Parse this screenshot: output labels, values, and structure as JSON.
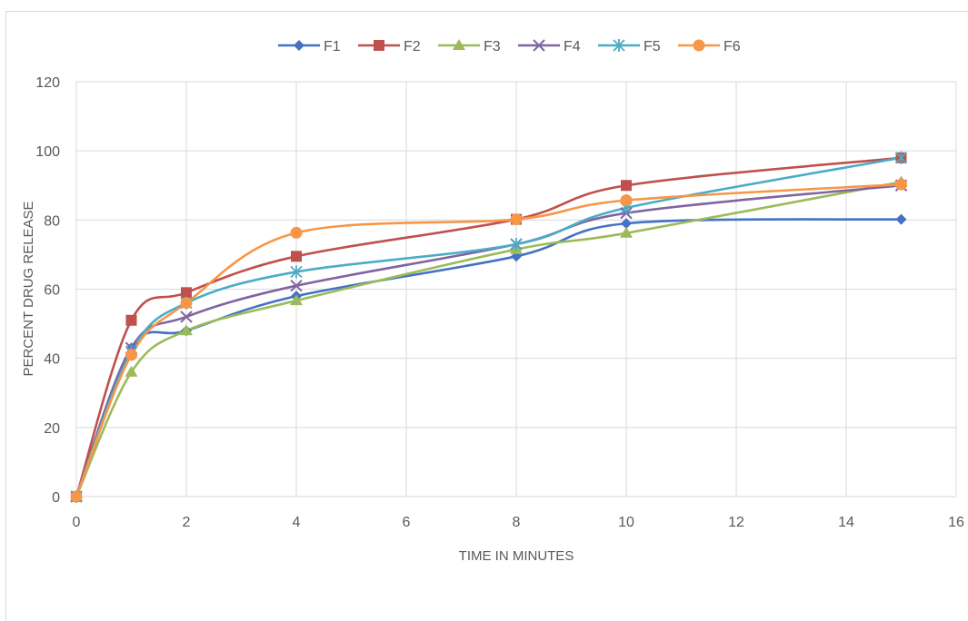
{
  "chart_data": {
    "type": "line",
    "title": "",
    "xlabel": "TIME IN MINUTES",
    "ylabel": "PERCENT DRUG RELEASE",
    "xlim": [
      0,
      16
    ],
    "ylim": [
      0,
      120
    ],
    "xticks": [
      0,
      2,
      4,
      6,
      8,
      10,
      12,
      14,
      16
    ],
    "yticks": [
      0,
      20,
      40,
      60,
      80,
      100,
      120
    ],
    "grid": true,
    "legend_position": "top",
    "smooth": true,
    "x": [
      0,
      1,
      2,
      4,
      8,
      10,
      15
    ],
    "series": [
      {
        "name": "F1",
        "color": "#4472C4",
        "marker": "diamond",
        "values": [
          0,
          43,
          48,
          58,
          69.5,
          79,
          80.2
        ]
      },
      {
        "name": "F2",
        "color": "#C0504D",
        "marker": "square",
        "values": [
          0,
          51,
          59,
          69.5,
          80.2,
          90,
          98
        ]
      },
      {
        "name": "F3",
        "color": "#9BBB59",
        "marker": "triangle",
        "values": [
          0,
          36,
          48,
          56.7,
          71.5,
          76.2,
          91
        ]
      },
      {
        "name": "F4",
        "color": "#8064A2",
        "marker": "x",
        "values": [
          0,
          43,
          52,
          61,
          73,
          82,
          90
        ]
      },
      {
        "name": "F5",
        "color": "#4BACC6",
        "marker": "star",
        "values": [
          0,
          42,
          56,
          65,
          73,
          83.5,
          98
        ]
      },
      {
        "name": "F6",
        "color": "#F79646",
        "marker": "circle",
        "values": [
          0,
          41,
          56,
          76.3,
          80.2,
          85.7,
          90.3
        ]
      }
    ]
  }
}
